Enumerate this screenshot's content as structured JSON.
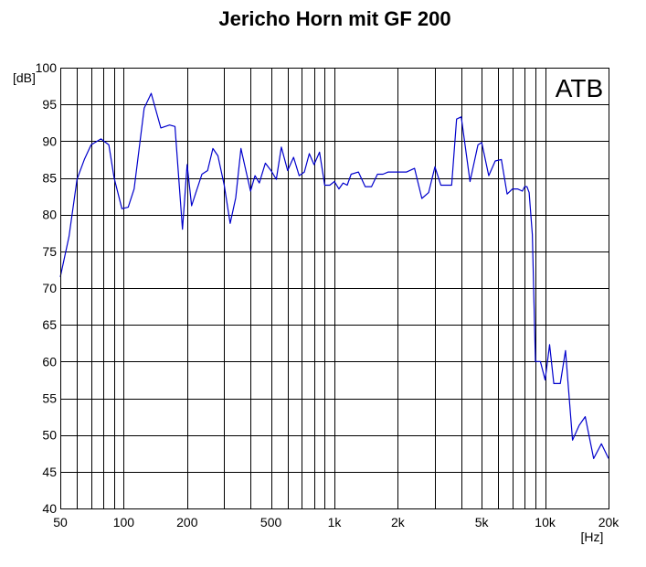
{
  "chart_data": {
    "type": "line",
    "title": "Jericho Horn mit GF 200",
    "ylabel": "[dB]",
    "xlabel": "[Hz]",
    "badge": "ATB",
    "x_scale": "log",
    "xlim": [
      50,
      20000
    ],
    "ylim": [
      40,
      100
    ],
    "grid": true,
    "line_color": "#0000cc",
    "x_ticks": [
      {
        "value": 50,
        "label": "50"
      },
      {
        "value": 100,
        "label": "100"
      },
      {
        "value": 200,
        "label": "200"
      },
      {
        "value": 500,
        "label": "500"
      },
      {
        "value": 1000,
        "label": "1k"
      },
      {
        "value": 2000,
        "label": "2k"
      },
      {
        "value": 5000,
        "label": "5k"
      },
      {
        "value": 10000,
        "label": "10k"
      },
      {
        "value": 20000,
        "label": "20k"
      }
    ],
    "x_grid": [
      50,
      60,
      70,
      80,
      90,
      100,
      200,
      300,
      400,
      500,
      600,
      700,
      800,
      900,
      1000,
      2000,
      3000,
      4000,
      5000,
      6000,
      7000,
      8000,
      9000,
      10000,
      20000
    ],
    "y_ticks": [
      {
        "value": 100,
        "label": "100"
      },
      {
        "value": 95,
        "label": "95"
      },
      {
        "value": 90,
        "label": "90"
      },
      {
        "value": 85,
        "label": "85"
      },
      {
        "value": 80,
        "label": "80"
      },
      {
        "value": 75,
        "label": "75"
      },
      {
        "value": 70,
        "label": "70"
      },
      {
        "value": 65,
        "label": "65"
      },
      {
        "value": 60,
        "label": "60"
      },
      {
        "value": 55,
        "label": "55"
      },
      {
        "value": 50,
        "label": "50"
      },
      {
        "value": 45,
        "label": "45"
      },
      {
        "value": 40,
        "label": "40"
      }
    ],
    "series": [
      {
        "x": [
          50,
          55,
          60,
          65,
          70,
          78,
          85,
          90,
          98,
          105,
          112,
          125,
          135,
          150,
          165,
          175,
          190,
          200,
          210,
          220,
          235,
          250,
          265,
          280,
          300,
          320,
          340,
          360,
          380,
          400,
          420,
          440,
          470,
          500,
          530,
          560,
          600,
          640,
          680,
          720,
          760,
          800,
          850,
          900,
          950,
          1000,
          1050,
          1100,
          1150,
          1200,
          1300,
          1400,
          1500,
          1600,
          1700,
          1800,
          2000,
          2200,
          2400,
          2600,
          2800,
          3000,
          3200,
          3400,
          3600,
          3800,
          4000,
          4400,
          4800,
          5000,
          5400,
          5800,
          6200,
          6600,
          7000,
          7400,
          7800,
          8000,
          8200,
          8400,
          8700,
          9000,
          9500,
          10000,
          10500,
          11000,
          11800,
          12500,
          13500,
          14500,
          15500,
          17000,
          18500,
          20000
        ],
        "y": [
          71.5,
          77,
          84.8,
          87.5,
          89.5,
          90.3,
          89.5,
          85,
          80.8,
          81,
          83.5,
          94.5,
          96.5,
          91.8,
          92.2,
          92,
          78,
          86.8,
          81.2,
          83,
          85.5,
          86,
          89,
          88,
          84,
          78.8,
          82.3,
          89,
          86,
          83.2,
          85.3,
          84.3,
          87,
          86,
          84.8,
          89.2,
          86,
          87.8,
          85.3,
          85.8,
          88.3,
          86.8,
          88.5,
          84,
          84,
          84.5,
          83.5,
          84.3,
          84,
          85.5,
          85.8,
          83.8,
          83.8,
          85.5,
          85.5,
          85.8,
          85.8,
          85.8,
          86.3,
          82.2,
          83,
          86.5,
          84,
          84,
          84,
          93,
          93.3,
          84.5,
          89.5,
          89.8,
          85.3,
          87.3,
          87.5,
          82.8,
          83.5,
          83.5,
          83.2,
          83.8,
          83.8,
          83,
          77.3,
          60,
          60,
          57.5,
          62.3,
          57,
          57,
          61.5,
          49.3,
          51.3,
          52.5,
          46.8,
          48.8,
          46.8
        ]
      }
    ]
  }
}
